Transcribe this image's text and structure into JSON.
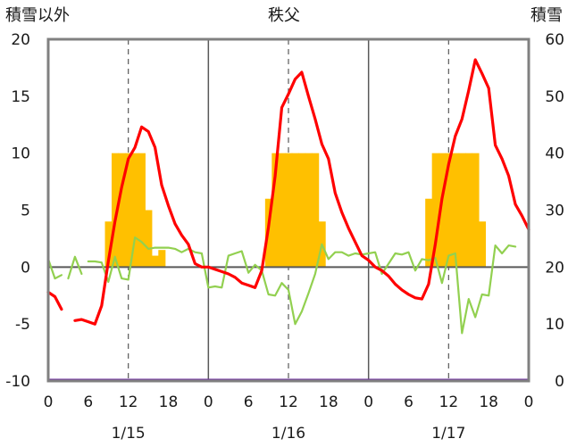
{
  "chart_data": {
    "type": "bar+line",
    "title": "秩父",
    "left_axis_label": "積雪以外",
    "right_axis_label": "積雪",
    "left_ylim": [
      -10,
      20
    ],
    "left_yticks": [
      "20",
      "15",
      "10",
      "5",
      "0",
      "-5",
      "-10"
    ],
    "right_ylim": [
      0,
      60
    ],
    "right_yticks": [
      "60",
      "50",
      "40",
      "30",
      "20",
      "10",
      "0"
    ],
    "x_hours": [
      0,
      72
    ],
    "x_tick_labels": [
      "0",
      "6",
      "12",
      "18",
      "0",
      "6",
      "12",
      "18",
      "0",
      "6",
      "12",
      "18",
      "0"
    ],
    "day_labels": [
      "1/15",
      "1/16",
      "1/17"
    ],
    "grid": "vertical dashed at 12h, solid day separators",
    "colors": {
      "temperature": "#ff0000",
      "wind": "#92d050",
      "snow_depth": "#ffc000",
      "baseline": "#7030a0",
      "frame": "#808080",
      "zero_line": "#595959"
    },
    "series": [
      {
        "key": "snow_depth",
        "kind": "bar",
        "axis": "right",
        "values": [
          {
            "h": 9,
            "v": 28
          },
          {
            "h": 10,
            "v": 40
          },
          {
            "h": 11,
            "v": 40
          },
          {
            "h": 12,
            "v": 40
          },
          {
            "h": 13,
            "v": 40
          },
          {
            "h": 14,
            "v": 40
          },
          {
            "h": 15,
            "v": 30
          },
          {
            "h": 16,
            "v": 22
          },
          {
            "h": 17,
            "v": 23
          },
          {
            "h": 33,
            "v": 32
          },
          {
            "h": 34,
            "v": 40
          },
          {
            "h": 35,
            "v": 40
          },
          {
            "h": 36,
            "v": 40
          },
          {
            "h": 37,
            "v": 40
          },
          {
            "h": 38,
            "v": 40
          },
          {
            "h": 39,
            "v": 40
          },
          {
            "h": 40,
            "v": 40
          },
          {
            "h": 41,
            "v": 28
          },
          {
            "h": 57,
            "v": 32
          },
          {
            "h": 58,
            "v": 40
          },
          {
            "h": 59,
            "v": 40
          },
          {
            "h": 60,
            "v": 40
          },
          {
            "h": 61,
            "v": 40
          },
          {
            "h": 62,
            "v": 40
          },
          {
            "h": 63,
            "v": 40
          },
          {
            "h": 64,
            "v": 40
          },
          {
            "h": 65,
            "v": 28
          }
        ]
      },
      {
        "key": "temperature",
        "kind": "line",
        "axis": "left",
        "segments": [
          [
            [
              0,
              -2.2
            ],
            [
              1,
              -2.6
            ],
            [
              2,
              -3.7
            ]
          ],
          [
            [
              4,
              -4.7
            ],
            [
              5,
              -4.6
            ],
            [
              6,
              -4.8
            ],
            [
              7,
              -5.0
            ],
            [
              8,
              -3.4
            ],
            [
              9,
              0.5
            ],
            [
              10,
              4.0
            ],
            [
              11,
              7.0
            ],
            [
              12,
              9.5
            ],
            [
              13,
              10.5
            ],
            [
              14,
              12.3
            ],
            [
              15,
              11.9
            ],
            [
              16,
              10.5
            ],
            [
              17,
              7.2
            ],
            [
              18,
              5.4
            ],
            [
              19,
              3.8
            ],
            [
              20,
              2.8
            ],
            [
              21,
              2.0
            ],
            [
              22,
              0.3
            ],
            [
              23,
              0.0
            ],
            [
              24,
              0.0
            ],
            [
              25,
              -0.2
            ],
            [
              26,
              -0.4
            ],
            [
              27,
              -0.6
            ],
            [
              28,
              -0.9
            ],
            [
              29,
              -1.4
            ],
            [
              30,
              -1.6
            ],
            [
              31,
              -1.8
            ],
            [
              32,
              -0.3
            ],
            [
              33,
              3.5
            ],
            [
              34,
              8.0
            ],
            [
              35,
              14.0
            ],
            [
              36,
              15.2
            ],
            [
              37,
              16.5
            ],
            [
              38,
              17.1
            ],
            [
              39,
              15.0
            ],
            [
              40,
              13.0
            ],
            [
              41,
              10.8
            ],
            [
              42,
              9.5
            ],
            [
              43,
              6.5
            ],
            [
              44,
              4.8
            ],
            [
              45,
              3.4
            ],
            [
              46,
              2.2
            ],
            [
              47,
              1.0
            ],
            [
              48,
              0.6
            ],
            [
              49,
              0.0
            ],
            [
              50,
              -0.3
            ],
            [
              51,
              -0.8
            ],
            [
              52,
              -1.5
            ],
            [
              53,
              -2.0
            ],
            [
              54,
              -2.4
            ],
            [
              55,
              -2.7
            ],
            [
              56,
              -2.8
            ],
            [
              57,
              -1.5
            ],
            [
              58,
              2.0
            ],
            [
              59,
              6.0
            ],
            [
              60,
              9.0
            ],
            [
              61,
              11.5
            ],
            [
              62,
              13.0
            ],
            [
              63,
              15.5
            ],
            [
              64,
              18.2
            ],
            [
              65,
              17.0
            ],
            [
              66,
              15.7
            ],
            [
              67,
              10.7
            ],
            [
              68,
              9.5
            ],
            [
              69,
              8.0
            ],
            [
              70,
              5.5
            ],
            [
              71,
              4.5
            ],
            [
              72,
              3.3
            ]
          ]
        ]
      },
      {
        "key": "wind",
        "kind": "line",
        "axis": "left",
        "segments": [
          [
            [
              0,
              0.7
            ],
            [
              1,
              -1.0
            ],
            [
              2,
              -0.7
            ]
          ],
          [
            [
              3,
              -1.0
            ],
            [
              4,
              0.9
            ],
            [
              5,
              -0.6
            ]
          ],
          [
            [
              6,
              0.5
            ],
            [
              7,
              0.5
            ],
            [
              8,
              0.4
            ],
            [
              9,
              -1.3
            ],
            [
              10,
              0.9
            ],
            [
              11,
              -1.0
            ],
            [
              12,
              -1.1
            ],
            [
              13,
              2.6
            ],
            [
              14,
              2.2
            ],
            [
              15,
              1.6
            ],
            [
              16,
              1.7
            ],
            [
              17,
              1.7
            ],
            [
              18,
              1.7
            ],
            [
              19,
              1.6
            ],
            [
              20,
              1.3
            ],
            [
              21,
              1.6
            ],
            [
              22,
              1.3
            ],
            [
              23,
              1.2
            ],
            [
              24,
              -1.8
            ],
            [
              25,
              -1.7
            ],
            [
              26,
              -1.8
            ],
            [
              27,
              1.0
            ],
            [
              28,
              1.2
            ],
            [
              29,
              1.4
            ],
            [
              30,
              -0.5
            ],
            [
              31,
              0.2
            ],
            [
              32,
              -0.3
            ],
            [
              33,
              -2.4
            ],
            [
              34,
              -2.5
            ],
            [
              35,
              -1.4
            ],
            [
              36,
              -2.0
            ],
            [
              37,
              -5.0
            ],
            [
              38,
              -3.9
            ],
            [
              39,
              -2.3
            ],
            [
              40,
              -0.6
            ],
            [
              41,
              2.0
            ],
            [
              42,
              0.7
            ],
            [
              43,
              1.3
            ],
            [
              44,
              1.3
            ],
            [
              45,
              1.0
            ],
            [
              46,
              1.2
            ],
            [
              47,
              1.1
            ],
            [
              48,
              1.2
            ],
            [
              49,
              1.3
            ],
            [
              50,
              -0.6
            ],
            [
              51,
              0.3
            ],
            [
              52,
              1.2
            ],
            [
              53,
              1.1
            ],
            [
              54,
              1.3
            ],
            [
              55,
              -0.3
            ],
            [
              56,
              0.7
            ],
            [
              57,
              0.6
            ],
            [
              58,
              0.8
            ],
            [
              59,
              -1.4
            ],
            [
              60,
              1.0
            ],
            [
              61,
              1.2
            ],
            [
              62,
              -5.8
            ],
            [
              63,
              -2.8
            ],
            [
              64,
              -4.4
            ],
            [
              65,
              -2.4
            ],
            [
              66,
              -2.5
            ],
            [
              67,
              1.9
            ],
            [
              68,
              1.2
            ],
            [
              69,
              1.9
            ],
            [
              70,
              1.8
            ]
          ]
        ]
      }
    ]
  }
}
